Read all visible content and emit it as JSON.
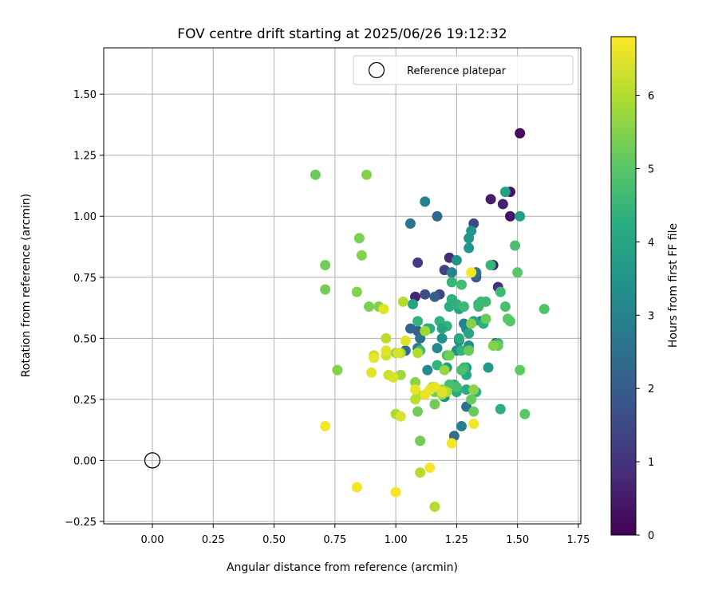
{
  "chart_data": {
    "type": "scatter",
    "title": "FOV centre drift starting at 2025/06/26 19:12:32",
    "xlabel": "Angular distance from reference (arcmin)",
    "ylabel": "Rotation from reference (arcmin)",
    "xlim": [
      -0.2,
      1.76
    ],
    "ylim": [
      -0.26,
      1.69
    ],
    "xticks": [
      0.0,
      0.25,
      0.5,
      0.75,
      1.0,
      1.25,
      1.5,
      1.75
    ],
    "xtick_labels": [
      "0.00",
      "0.25",
      "0.50",
      "0.75",
      "1.00",
      "1.25",
      "1.50",
      "1.75"
    ],
    "yticks": [
      -0.25,
      0.0,
      0.25,
      0.5,
      0.75,
      1.0,
      1.25,
      1.5
    ],
    "ytick_labels": [
      "−0.25",
      "0.00",
      "0.25",
      "0.50",
      "0.75",
      "1.00",
      "1.25",
      "1.50"
    ],
    "grid": true,
    "legend": {
      "placement": "top-right",
      "label": "Reference platepar"
    },
    "reference_point": {
      "x": 0.0,
      "y": 0.0
    },
    "colorbar": {
      "label": "Hours from first FF file",
      "colormap": "viridis",
      "range": [
        0,
        6.8
      ],
      "ticks": [
        0,
        1,
        2,
        3,
        4,
        5,
        6
      ],
      "tick_labels": [
        "0",
        "1",
        "2",
        "3",
        "4",
        "5",
        "6"
      ]
    },
    "series": [
      {
        "x": [
          1.51,
          1.47,
          1.39,
          1.44,
          1.47,
          1.32,
          1.4,
          1.22,
          1.09,
          1.12,
          1.08,
          1.42,
          1.2,
          1.18,
          1.17,
          1.33,
          1.09,
          1.16,
          1.33,
          1.06,
          1.1,
          1.33,
          1.12,
          1.06,
          1.25,
          1.3,
          1.3,
          1.23,
          1.23,
          1.28,
          1.26,
          1.35,
          1.25,
          1.17,
          1.29,
          1.22,
          1.2,
          1.29,
          1.16,
          1.24,
          1.41,
          1.27,
          1.19,
          1.3,
          1.21,
          1.38,
          1.31,
          1.34,
          1.09,
          1.04,
          1.29,
          1.26,
          1.45,
          1.13,
          1.51,
          1.3,
          1.32,
          1.29,
          1.26,
          1.22,
          1.24,
          1.29,
          1.33,
          1.36,
          1.42,
          1.21,
          1.18,
          1.19,
          1.17,
          1.13,
          1.27,
          1.07,
          1.14,
          1.25,
          1.23,
          1.09,
          1.39,
          1.23,
          1.35,
          1.34,
          1.28,
          1.1,
          1.43,
          1.25,
          1.43,
          1.37,
          1.28,
          1.27,
          1.25,
          1.27,
          1.22,
          1.21,
          1.49,
          1.45,
          1.61,
          1.5,
          1.46,
          1.47,
          1.42,
          1.53,
          1.51,
          1.32,
          1.31,
          1.3,
          1.37,
          1.22,
          1.16,
          1.16,
          1.09,
          1.1,
          0.67,
          0.71,
          0.71,
          0.85,
          0.89,
          0.93,
          0.88,
          0.76,
          0.86,
          1.4,
          0.84,
          1.31,
          1.32,
          1.2,
          1.19,
          1.12,
          1.02,
          1.0,
          1.02,
          1.0,
          1.15,
          1.19,
          1.21,
          1.09,
          1.08,
          1.1,
          1.03,
          1.16,
          1.08,
          1.09,
          0.96,
          0.91,
          0.96,
          0.97,
          0.99,
          1.01,
          1.02,
          1.04,
          0.95,
          0.96,
          0.9,
          0.91,
          1.08,
          1.12,
          1.14,
          1.16,
          1.19,
          1.32,
          1.23,
          0.71,
          0.84,
          1.0,
          1.14,
          1.31
        ],
        "y": [
          1.34,
          1.1,
          1.07,
          1.05,
          1.0,
          0.97,
          0.8,
          0.83,
          0.81,
          0.68,
          0.67,
          0.71,
          0.78,
          0.68,
          1.0,
          0.75,
          0.53,
          0.67,
          0.76,
          0.54,
          0.5,
          0.77,
          1.06,
          0.97,
          0.82,
          0.91,
          0.87,
          0.77,
          0.64,
          0.56,
          0.49,
          0.57,
          0.45,
          0.46,
          0.38,
          0.31,
          0.26,
          0.22,
          0.3,
          0.1,
          0.48,
          0.14,
          0.5,
          0.47,
          0.38,
          0.38,
          0.94,
          0.64,
          0.46,
          0.45,
          0.54,
          0.62,
          1.1,
          0.54,
          1.0,
          0.52,
          0.57,
          0.35,
          0.5,
          0.63,
          0.31,
          0.29,
          0.28,
          0.56,
          0.48,
          0.55,
          0.57,
          0.54,
          0.39,
          0.37,
          0.45,
          0.64,
          0.54,
          0.64,
          0.66,
          0.57,
          0.8,
          0.73,
          0.65,
          0.63,
          0.38,
          0.45,
          0.21,
          0.28,
          0.69,
          0.65,
          0.63,
          0.72,
          0.3,
          0.37,
          0.31,
          0.43,
          0.88,
          0.63,
          0.62,
          0.77,
          0.58,
          0.57,
          0.47,
          0.19,
          0.37,
          0.2,
          0.25,
          0.45,
          0.58,
          0.43,
          0.23,
          0.28,
          0.2,
          0.08,
          1.17,
          0.8,
          0.7,
          0.91,
          0.63,
          0.63,
          1.17,
          0.37,
          0.84,
          0.47,
          0.69,
          0.56,
          0.29,
          0.37,
          0.27,
          0.53,
          0.35,
          0.44,
          0.44,
          0.19,
          0.3,
          0.29,
          0.28,
          0.44,
          0.32,
          -0.05,
          0.65,
          -0.19,
          0.25,
          0.27,
          0.5,
          0.43,
          0.43,
          0.35,
          0.34,
          0.44,
          0.18,
          0.49,
          0.62,
          0.45,
          0.36,
          0.42,
          0.29,
          0.27,
          0.29,
          0.3,
          0.28,
          0.15,
          0.07,
          0.14,
          -0.11,
          -0.13,
          -0.03,
          0.77
        ],
        "hours": [
          0.2,
          0.3,
          0.5,
          0.6,
          0.4,
          1.5,
          0.6,
          0.8,
          1.2,
          1.6,
          0.7,
          0.9,
          1.3,
          1.4,
          2.3,
          1.8,
          2.0,
          2.1,
          2.2,
          2.2,
          2.5,
          2.6,
          3.0,
          2.6,
          3.4,
          3.5,
          3.5,
          3.0,
          3.2,
          3.0,
          3.3,
          2.8,
          3.3,
          3.1,
          3.6,
          3.5,
          3.3,
          2.5,
          2.3,
          2.4,
          1.8,
          2.9,
          3.4,
          3.4,
          3.6,
          3.7,
          3.5,
          3.8,
          2.8,
          2.4,
          3.1,
          3.9,
          3.9,
          3.7,
          3.8,
          4.0,
          4.0,
          4.1,
          4.1,
          4.2,
          4.2,
          4.2,
          4.3,
          4.3,
          4.4,
          4.4,
          4.4,
          4.0,
          4.4,
          3.2,
          4.4,
          3.9,
          4.2,
          4.4,
          4.3,
          4.4,
          4.5,
          4.5,
          4.6,
          4.6,
          4.6,
          4.6,
          4.3,
          4.2,
          4.6,
          4.6,
          4.6,
          4.7,
          4.7,
          4.8,
          4.8,
          4.8,
          4.8,
          4.8,
          4.9,
          5.0,
          5.0,
          5.0,
          5.2,
          5.0,
          5.1,
          5.2,
          5.2,
          5.2,
          5.2,
          5.3,
          5.3,
          5.3,
          5.3,
          5.3,
          5.2,
          5.3,
          5.3,
          5.4,
          5.4,
          5.5,
          5.5,
          5.5,
          5.5,
          5.5,
          5.5,
          5.5,
          5.6,
          5.7,
          5.8,
          5.8,
          5.8,
          5.8,
          5.9,
          5.9,
          5.9,
          5.9,
          6.0,
          6.0,
          5.6,
          6.0,
          6.0,
          6.0,
          6.1,
          6.0,
          6.1,
          6.2,
          6.3,
          6.3,
          6.4,
          6.4,
          6.4,
          6.5,
          6.5,
          6.5,
          6.5,
          6.6,
          6.6,
          6.6,
          6.6,
          6.6,
          6.5,
          6.7,
          6.7,
          6.7,
          6.7,
          6.7,
          6.7,
          6.7
        ]
      }
    ]
  }
}
